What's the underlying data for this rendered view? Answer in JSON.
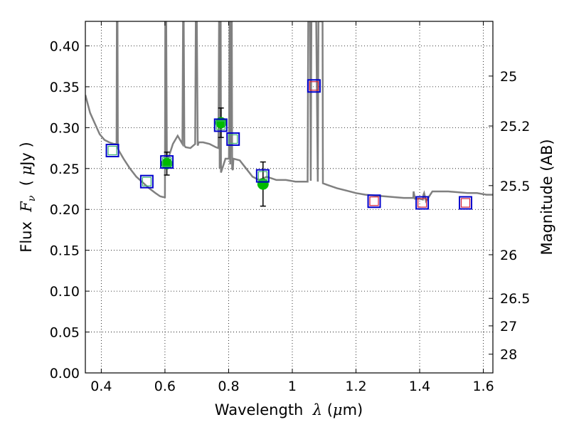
{
  "chart_data": {
    "type": "scatter",
    "xlabel": {
      "pre": "Wavelength  ",
      "sym": "λ",
      "post": " (",
      "mu": "μ",
      "unit": "m)"
    },
    "ylabel": {
      "pre": "Flux  ",
      "sym": "F",
      "sub": "ν",
      "post": "  ( ",
      "mu": "μ",
      "unit": "Jy )"
    },
    "y2label": "Magnitude (AB)",
    "xlim": [
      0.35,
      1.63
    ],
    "ylim": [
      0.0,
      0.43
    ],
    "grid": true,
    "x_ticks": [
      {
        "v": 0.4,
        "label": "0.4"
      },
      {
        "v": 0.6,
        "label": "0.6"
      },
      {
        "v": 0.8,
        "label": "0.8"
      },
      {
        "v": 1.0,
        "label": "1"
      },
      {
        "v": 1.2,
        "label": "1.2"
      },
      {
        "v": 1.4,
        "label": "1.4"
      },
      {
        "v": 1.6,
        "label": "1.6"
      }
    ],
    "y_ticks": [
      {
        "v": 0.0,
        "label": "0.00"
      },
      {
        "v": 0.05,
        "label": "0.05"
      },
      {
        "v": 0.1,
        "label": "0.10"
      },
      {
        "v": 0.15,
        "label": "0.15"
      },
      {
        "v": 0.2,
        "label": "0.20"
      },
      {
        "v": 0.25,
        "label": "0.25"
      },
      {
        "v": 0.3,
        "label": "0.30"
      },
      {
        "v": 0.35,
        "label": "0.35"
      },
      {
        "v": 0.4,
        "label": "0.40"
      }
    ],
    "y2_ticks": [
      {
        "v": 25,
        "label": "25"
      },
      {
        "v": 25.2,
        "label": "25.2"
      },
      {
        "v": 25.5,
        "label": "25.5"
      },
      {
        "v": 26,
        "label": "26"
      },
      {
        "v": 26.5,
        "label": "26.5"
      },
      {
        "v": 27,
        "label": "27"
      },
      {
        "v": 28,
        "label": "28"
      }
    ],
    "sed_model": {
      "color": "#808080",
      "x": [
        0.35,
        0.365,
        0.38,
        0.395,
        0.41,
        0.425,
        0.44,
        0.448,
        0.449,
        0.451,
        0.452,
        0.455,
        0.47,
        0.49,
        0.51,
        0.53,
        0.55,
        0.57,
        0.585,
        0.595,
        0.6,
        0.601,
        0.604,
        0.606,
        0.61,
        0.625,
        0.64,
        0.655,
        0.657,
        0.659,
        0.661,
        0.665,
        0.68,
        0.695,
        0.697,
        0.7,
        0.703,
        0.706,
        0.72,
        0.74,
        0.76,
        0.768,
        0.77,
        0.771,
        0.772,
        0.773,
        0.775,
        0.776,
        0.79,
        0.801,
        0.803,
        0.804,
        0.805,
        0.807,
        0.81,
        0.811,
        0.813,
        0.815,
        0.835,
        0.855,
        0.875,
        0.895,
        0.92,
        0.95,
        0.98,
        1.01,
        1.04,
        1.048,
        1.05,
        1.056,
        1.058,
        1.06,
        1.075,
        1.08,
        1.082,
        1.095,
        1.096,
        1.11,
        1.14,
        1.17,
        1.2,
        1.23,
        1.26,
        1.29,
        1.32,
        1.35,
        1.38,
        1.381,
        1.383,
        1.385,
        1.4,
        1.41,
        1.412,
        1.414,
        1.42,
        1.44,
        1.46,
        1.49,
        1.52,
        1.55,
        1.58,
        1.61,
        1.63
      ],
      "y": [
        0.34,
        0.318,
        0.305,
        0.292,
        0.285,
        0.282,
        0.28,
        0.28,
        0.43,
        0.43,
        0.275,
        0.272,
        0.262,
        0.25,
        0.24,
        0.233,
        0.226,
        0.22,
        0.216,
        0.215,
        0.215,
        0.43,
        0.43,
        0.26,
        0.262,
        0.28,
        0.29,
        0.28,
        0.43,
        0.43,
        0.278,
        0.276,
        0.275,
        0.28,
        0.43,
        0.43,
        0.278,
        0.282,
        0.282,
        0.28,
        0.276,
        0.275,
        0.43,
        0.43,
        0.25,
        0.43,
        0.43,
        0.245,
        0.262,
        0.262,
        0.43,
        0.43,
        0.255,
        0.43,
        0.43,
        0.25,
        0.248,
        0.262,
        0.26,
        0.25,
        0.24,
        0.236,
        0.24,
        0.236,
        0.236,
        0.234,
        0.234,
        0.234,
        0.43,
        0.43,
        0.235,
        0.43,
        0.43,
        0.234,
        0.43,
        0.43,
        0.232,
        0.23,
        0.226,
        0.223,
        0.22,
        0.218,
        0.217,
        0.216,
        0.215,
        0.214,
        0.214,
        0.222,
        0.218,
        0.213,
        0.213,
        0.212,
        0.218,
        0.22,
        0.21,
        0.222,
        0.222,
        0.222,
        0.221,
        0.22,
        0.22,
        0.218,
        0.218
      ]
    },
    "model_photometry": [
      {
        "x": 0.435,
        "y": 0.272,
        "edge": "#0000cc",
        "fill": "#3cb371"
      },
      {
        "x": 0.543,
        "y": 0.234,
        "edge": "#0000cc",
        "fill": "#3cb371"
      },
      {
        "x": 0.606,
        "y": 0.258,
        "edge": "#0000cc",
        "fill": "#3cb371"
      },
      {
        "x": 0.775,
        "y": 0.303,
        "edge": "#0000cc",
        "fill": "#3cb371"
      },
      {
        "x": 0.814,
        "y": 0.286,
        "edge": "#0000cc",
        "fill": "#3cb371"
      },
      {
        "x": 0.907,
        "y": 0.241,
        "edge": "#0000cc",
        "fill": "#3cb371"
      },
      {
        "x": 1.068,
        "y": 0.351,
        "edge": "#0000cc",
        "fill": "#d21f3c"
      },
      {
        "x": 1.257,
        "y": 0.21,
        "edge": "#0000cc",
        "fill": "#d21f3c"
      },
      {
        "x": 1.408,
        "y": 0.208,
        "edge": "#0000cc",
        "fill": "#d21f3c"
      },
      {
        "x": 1.544,
        "y": 0.208,
        "edge": "#0000cc",
        "fill": "#d21f3c"
      }
    ],
    "observed": [
      {
        "x": 0.606,
        "y": 0.256,
        "err": 0.014
      },
      {
        "x": 0.776,
        "y": 0.306,
        "err": 0.018
      },
      {
        "x": 0.908,
        "y": 0.231,
        "err": 0.027
      }
    ],
    "observed_color": "#00bb00"
  }
}
